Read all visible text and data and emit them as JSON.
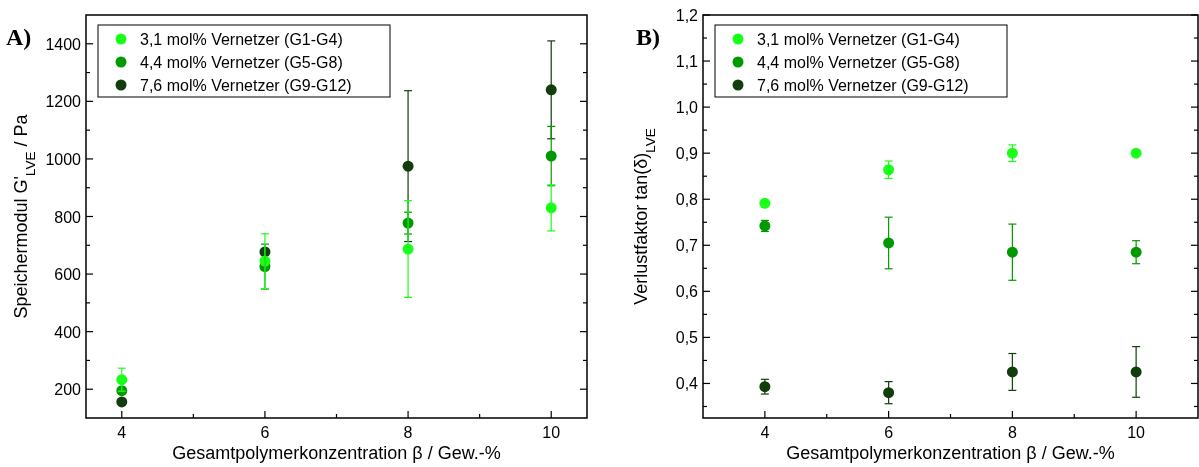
{
  "chart_data": [
    {
      "type": "scatter",
      "title": "A)",
      "xlabel": "Gesamtpolymerkonzentration β / Gew.-%",
      "ylabel": "Speichermodul G'$_{LVE}$ / Pa",
      "x": [
        4,
        6,
        8,
        10
      ],
      "xlim": [
        3.5,
        10.5
      ],
      "xticks": [
        4,
        {
          "value": 5,
          "label": null
        },
        6,
        {
          "value": 7,
          "label": null
        },
        8,
        {
          "value": 9,
          "label": null
        },
        10
      ],
      "ylim": [
        100,
        1500
      ],
      "yticks": [
        200,
        {
          "value": 300,
          "label": null
        },
        400,
        {
          "value": 500,
          "label": null
        },
        600,
        {
          "value": 700,
          "label": null
        },
        800,
        {
          "value": 900,
          "label": null
        },
        1000,
        {
          "value": 1100,
          "label": null
        },
        1200,
        {
          "value": 1300,
          "label": null
        },
        1400
      ],
      "marker": "circle",
      "legend": "top left",
      "grid": false,
      "series": [
        {
          "name": "3,1 mol% Vernetzer (G1-G4)",
          "color": "#1aff1a",
          "values": [
            233,
            645,
            687,
            830
          ],
          "errors": [
            40,
            95,
            168,
            80
          ]
        },
        {
          "name": "4,4 mol% Vernetzer (G5-G8)",
          "color": "#009a00",
          "values": [
            195,
            626,
            777,
            1010
          ],
          "errors": [
            null,
            78,
            38,
            103
          ]
        },
        {
          "name": "7,6 mol% Vernetzer (G9-G12)",
          "color": "#123d0c",
          "values": [
            156,
            677,
            975,
            1240
          ],
          "errors": [
            null,
            null,
            262,
            170
          ]
        }
      ]
    },
    {
      "type": "scatter",
      "title": "B)",
      "xlabel": "Gesamtpolymerkonzentration β / Gew.-%",
      "ylabel": "Verlustfaktor tan(δ)$_{LVE}$",
      "x": [
        4,
        6,
        8,
        10
      ],
      "xlim": [
        3,
        11
      ],
      "xticks": [
        4,
        {
          "value": 5,
          "label": null
        },
        6,
        {
          "value": 7,
          "label": null
        },
        8,
        {
          "value": 9,
          "label": null
        },
        10
      ],
      "ylim": [
        0.325,
        1.2
      ],
      "yticks": [
        {
          "value": 0.35,
          "label": null
        },
        {
          "value": 0.4,
          "label": "0,4"
        },
        {
          "value": 0.45,
          "label": null
        },
        {
          "value": 0.5,
          "label": "0,5"
        },
        {
          "value": 0.55,
          "label": null
        },
        {
          "value": 0.6,
          "label": "0,6"
        },
        {
          "value": 0.65,
          "label": null
        },
        {
          "value": 0.7,
          "label": "0,7"
        },
        {
          "value": 0.75,
          "label": null
        },
        {
          "value": 0.8,
          "label": "0,8"
        },
        {
          "value": 0.85,
          "label": null
        },
        {
          "value": 0.9,
          "label": "0,9"
        },
        {
          "value": 0.95,
          "label": null
        },
        {
          "value": 1.0,
          "label": "1,0"
        },
        {
          "value": 1.05,
          "label": null
        },
        {
          "value": 1.1,
          "label": "1,1"
        },
        {
          "value": 1.15,
          "label": null
        },
        {
          "value": 1.2,
          "label": "1,2"
        }
      ],
      "marker": "circle",
      "legend": "top left",
      "grid": false,
      "series": [
        {
          "name": "3,1 mol% Vernetzer (G1-G4)",
          "color": "#1aff1a",
          "values": [
            0.791,
            0.864,
            0.9,
            0.9
          ],
          "errors": [
            null,
            0.019,
            0.018,
            null
          ]
        },
        {
          "name": "4,4 mol% Vernetzer (G5-G8)",
          "color": "#009a00",
          "values": [
            0.742,
            0.705,
            0.685,
            0.685
          ],
          "errors": [
            0.012,
            0.056,
            0.061,
            0.025
          ]
        },
        {
          "name": "7,6 mol% Vernetzer (G9-G12)",
          "color": "#123d0c",
          "values": [
            0.393,
            0.38,
            0.425,
            0.425
          ],
          "errors": [
            0.016,
            0.024,
            0.04,
            0.055
          ]
        }
      ]
    }
  ]
}
